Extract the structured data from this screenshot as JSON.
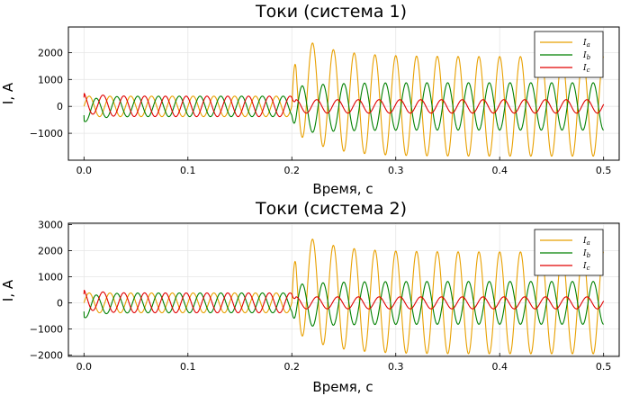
{
  "chart_data": [
    {
      "type": "line",
      "title": "Токи (система 1)",
      "xlabel": "Время, с",
      "ylabel": "I, А",
      "xlim": [
        -0.015,
        0.515
      ],
      "ylim": [
        -2000,
        2950
      ],
      "xticks": [
        0.0,
        0.1,
        0.2,
        0.3,
        0.4,
        0.5
      ],
      "xtick_labels": [
        "0.0",
        "0.1",
        "0.2",
        "0.3",
        "0.4",
        "0.5"
      ],
      "yticks": [
        -1000,
        0,
        1000,
        2000
      ],
      "ytick_labels": [
        "−1000",
        "0",
        "1000",
        "2000"
      ],
      "grid": true,
      "legend_position": "top-right",
      "frequency_hz": 50,
      "fault_time_s": 0.2,
      "series": [
        {
          "name": "I_a",
          "label_main": "I",
          "label_sub": "a",
          "color": "#e8a000",
          "pre_fault_amplitude": 380,
          "post_fault_amplitude": 1850,
          "post_fault_peak_first": 2830,
          "post_fault_min": -1900,
          "post_fault_offset": 0
        },
        {
          "name": "I_b",
          "label_main": "I",
          "label_sub": "b",
          "color": "#008000",
          "pre_fault_amplitude": 380,
          "pre_fault_first_min": -590,
          "post_fault_amplitude": 880,
          "post_fault_first_min": -1150,
          "post_fault_offset": 0
        },
        {
          "name": "I_c",
          "label_main": "I",
          "label_sub": "c",
          "color": "#e00000",
          "pre_fault_amplitude": 380,
          "pre_fault_first_max": 560,
          "post_fault_amplitude": 250,
          "post_fault_offset": 0
        }
      ]
    },
    {
      "type": "line",
      "title": "Токи (система 2)",
      "xlabel": "Время, с",
      "ylabel": "I, А",
      "xlim": [
        -0.015,
        0.515
      ],
      "ylim": [
        -2050,
        3050
      ],
      "xticks": [
        0.0,
        0.1,
        0.2,
        0.3,
        0.4,
        0.5
      ],
      "xtick_labels": [
        "0.0",
        "0.1",
        "0.2",
        "0.3",
        "0.4",
        "0.5"
      ],
      "yticks": [
        -2000,
        -1000,
        0,
        1000,
        2000,
        3000
      ],
      "ytick_labels": [
        "−2000",
        "−1000",
        "0",
        "1000",
        "2000",
        "3000"
      ],
      "grid": true,
      "legend_position": "top-right",
      "frequency_hz": 50,
      "fault_time_s": 0.2,
      "series": [
        {
          "name": "I_a",
          "label_main": "I",
          "label_sub": "a",
          "color": "#e8a000",
          "pre_fault_amplitude": 380,
          "post_fault_amplitude": 1950,
          "post_fault_peak_first": 2900,
          "post_fault_min": -1950,
          "post_fault_offset": 0
        },
        {
          "name": "I_b",
          "label_main": "I",
          "label_sub": "b",
          "color": "#008000",
          "pre_fault_amplitude": 380,
          "pre_fault_first_min": -590,
          "post_fault_amplitude": 820,
          "post_fault_first_min": -1050,
          "post_fault_offset": 0
        },
        {
          "name": "I_c",
          "label_main": "I",
          "label_sub": "c",
          "color": "#e00000",
          "pre_fault_amplitude": 380,
          "pre_fault_first_max": 560,
          "post_fault_amplitude": 230,
          "post_fault_offset": 0
        }
      ]
    }
  ]
}
